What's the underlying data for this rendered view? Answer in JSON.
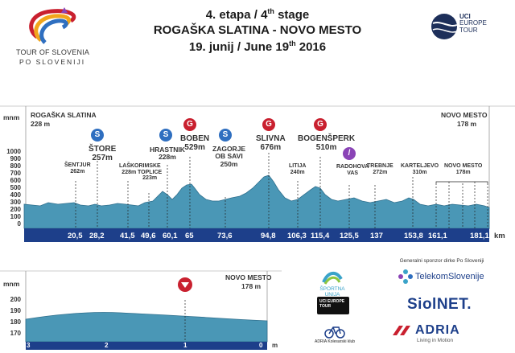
{
  "logo": {
    "name": "TOUR OF SLOVENIA",
    "sub": "PO SLOVENIJI"
  },
  "uci": {
    "line1": "UCI",
    "line2": "EUROPE",
    "line3": "TOUR"
  },
  "header": {
    "stage": "4. etapa / 4",
    "stage_sup": "th",
    "stage_suffix": " stage",
    "route": "ROGAŠKA SLATINA - NOVO MESTO",
    "date_pre": "19. junij / June 19",
    "date_sup": "th",
    "date_post": " 2016"
  },
  "profile": {
    "unit": "mnm",
    "start": {
      "name": "ROGAŠKA SLATINA",
      "alt": "228 m"
    },
    "finish": {
      "name": "NOVO MESTO",
      "alt": "178 m"
    },
    "y_ticks": [
      "1000",
      "900",
      "800",
      "700",
      "600",
      "500",
      "400",
      "300",
      "200",
      "100",
      "0"
    ],
    "km_unit": "km",
    "km_marks": [
      "20,5",
      "28,2",
      "41,5",
      "49,6",
      "60,1",
      "65",
      "73,6",
      "94,8",
      "106,3",
      "115,4",
      "125,5",
      "137",
      "153,8",
      "161,1",
      "181,1"
    ],
    "places": {
      "sentjur": {
        "name": "ŠENTJUR",
        "alt": "262m"
      },
      "store": {
        "name": "ŠTORE",
        "alt": "257m"
      },
      "lasko": {
        "name": "LAŠKO",
        "alt": "228m"
      },
      "rimske": {
        "l1": "RIMSKE",
        "l2": "TOPLICE",
        "alt": "223m"
      },
      "hrastnik": {
        "name": "HRASTNIK",
        "alt": "228m"
      },
      "boben": {
        "name": "BOBEN",
        "alt": "529m"
      },
      "zagorje": {
        "l1": "ZAGORJE",
        "l2": "OB SAVI",
        "alt": "250m"
      },
      "slivna": {
        "name": "SLIVNA",
        "alt": "676m"
      },
      "litija": {
        "name": "LITIJA",
        "alt": "240m"
      },
      "bogensperk": {
        "name": "BOGENŠPERK",
        "alt": "510m"
      },
      "radohova": {
        "l1": "RADOHOVA",
        "l2": "VAS"
      },
      "trebnje": {
        "name": "TREBNJE",
        "alt": "272m"
      },
      "kartelijevo": {
        "name": "KARTELJEVO",
        "alt": "310m"
      },
      "novo": {
        "name": "NOVO MESTO",
        "alt": "178m"
      }
    }
  },
  "finale": {
    "unit": "mnm",
    "finish": {
      "name": "NOVO MESTO",
      "alt": "178 m"
    },
    "y_ticks": [
      "200",
      "190",
      "180",
      "170"
    ],
    "km_marks": [
      "3",
      "2",
      "1",
      "0"
    ],
    "km_unit": "m"
  },
  "sponsors": {
    "general_caption": "Generalni sponzor dirke Po Sloveniji",
    "telekom": "TelekomSlovenije",
    "siol": "SiolNET.",
    "adria": "ADRIA",
    "adria_sub": "Living in Motion",
    "sportna": "ŠPORTNA UNIJA",
    "uci": "UCI EUROPE TOUR",
    "adria_kolesarski": "ADRIA Kolesarski klub"
  },
  "colors": {
    "sprint": "#2f6fc0",
    "climb": "#c9202f",
    "purple": "#8a44b6",
    "profile": "#4a97b6",
    "bar": "#1d3f8a"
  }
}
